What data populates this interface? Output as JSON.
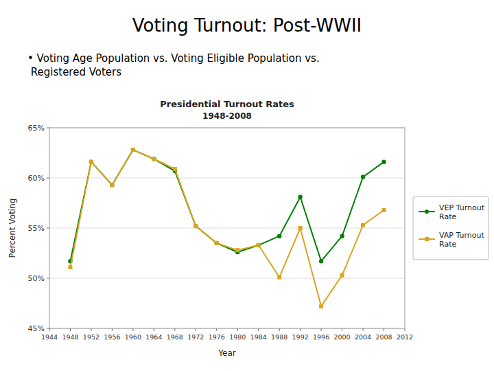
{
  "chart_data": {
    "type": "line",
    "title": "Presidential Turnout Rates",
    "subtitle": "1948-2008",
    "annotations": [
      "Voting Turnout: Post-WWII",
      "• Voting Age Population vs. Voting Eligible Population vs.\n  Registered Voters"
    ],
    "x_label": "Year",
    "y_label": "Percent Voting",
    "x": [
      1948,
      1952,
      1956,
      1960,
      1964,
      1968,
      1972,
      1976,
      1980,
      1984,
      1988,
      1992,
      1996,
      2000,
      2004,
      2008
    ],
    "series": [
      {
        "name": "VEP Turnout\nRate",
        "color": "#008000",
        "marker": "circle",
        "values": [
          51.7,
          61.6,
          59.3,
          62.8,
          61.9,
          60.7,
          55.2,
          53.5,
          52.6,
          53.3,
          54.2,
          58.1,
          51.7,
          54.2,
          60.1,
          61.6
        ]
      },
      {
        "name": "VAP Turnout\nRate",
        "color": "#DAA520",
        "marker": "square",
        "values": [
          51.1,
          61.6,
          59.3,
          62.8,
          61.9,
          60.9,
          55.2,
          53.5,
          52.8,
          53.3,
          50.1,
          55.0,
          47.2,
          50.3,
          55.3,
          56.8
        ]
      }
    ],
    "xlim": [
      1944,
      2012
    ],
    "xticks": [
      1944,
      1948,
      1952,
      1956,
      1960,
      1964,
      1968,
      1972,
      1976,
      1980,
      1984,
      1988,
      1992,
      1996,
      2000,
      2004,
      2008,
      2012
    ],
    "ylim": [
      45,
      65
    ],
    "yticks": [
      {
        "value": 45,
        "label": "45%"
      },
      {
        "value": 50,
        "label": "50%"
      },
      {
        "value": 55,
        "label": "55%"
      },
      {
        "value": 60,
        "label": "60%"
      },
      {
        "value": 65,
        "label": "65%"
      }
    ],
    "grid": true,
    "legend": "right"
  }
}
